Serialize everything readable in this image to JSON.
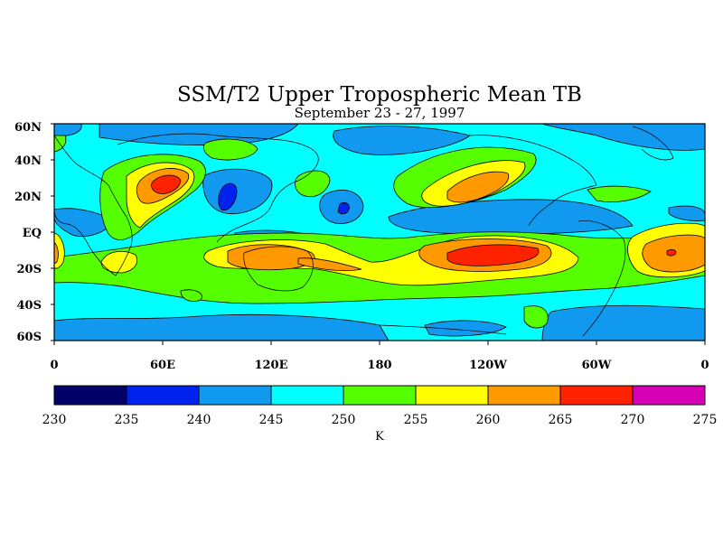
{
  "title": "SSM/T2 Upper Tropospheric Mean TB",
  "subtitle": "September 23 - 27, 1997",
  "lat_labels": [
    "60N",
    "40N",
    "20N",
    "EQ",
    "20S",
    "40S",
    "60S"
  ],
  "lon_labels": [
    "0",
    "60E",
    "120E",
    "180",
    "120W",
    "60W",
    "0"
  ],
  "colorbar": {
    "unit": "K",
    "ticks": [
      "230",
      "235",
      "240",
      "245",
      "250",
      "255",
      "260",
      "265",
      "270",
      "275"
    ],
    "colors": [
      "#000066",
      "#0022ee",
      "#1199f0",
      "#00ffff",
      "#55ff00",
      "#ffff00",
      "#ff9900",
      "#ff2200",
      "#d600b4"
    ]
  },
  "palette": {
    "deep_blue": "#0022ee",
    "blue": "#1199f0",
    "cyan": "#00ffff",
    "green": "#55ff00",
    "yellow": "#ffff00",
    "orange": "#ff9900",
    "red": "#ff2200"
  }
}
